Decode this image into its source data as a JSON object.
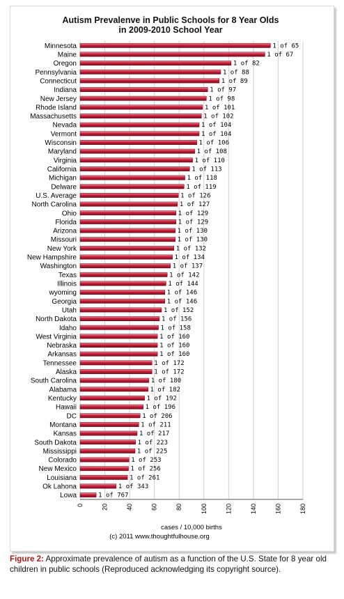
{
  "chart_data": {
    "type": "bar",
    "orientation": "horizontal",
    "title_line1": "Autism Prevalenve in Public Schools for 8 Year Olds",
    "title_line2": "in 2009-2010 School Year",
    "xlabel": "cases / 10,000 births",
    "credit": "(c) 2011 www.thoughtfulhouse.org",
    "xlim": [
      0,
      180
    ],
    "xticks": [
      0,
      20,
      40,
      60,
      80,
      100,
      120,
      140,
      160,
      180
    ],
    "grid": true,
    "bar_color": "#c0213a",
    "categories": [
      "Minnesota",
      "Maine",
      "Oregon",
      "Pennsylvania",
      "Connecticut",
      "Indiana",
      "New Jersey",
      "Rhode Island",
      "Massachusetts",
      "Nevada",
      "Vermont",
      "Wisconsin",
      "Maryland",
      "Virginia",
      "California",
      "Michigan",
      "Delware",
      "U.S. Average",
      "North Carolina",
      "Ohio",
      "Florida",
      "Arizona",
      "Missouri",
      "New York",
      "New Hampshire",
      "Washington",
      "Texas",
      "Illinois",
      "wyoming",
      "Georgia",
      "Utah",
      "North Dakota",
      "Idaho",
      "West Virginia",
      "Nebraska",
      "Arkansas",
      "Tennessee",
      "Alaska",
      "South Carolina",
      "Alabama",
      "Kentucky",
      "Hawaii",
      "DC",
      "Montana",
      "Kansas",
      "South Dakota",
      "Mississippi",
      "Colorado",
      "New Mexico",
      "Louisiana",
      "Ok Lahona",
      "Lowa"
    ],
    "values": [
      153.8,
      149.3,
      122.0,
      113.6,
      112.4,
      103.1,
      102.0,
      99.0,
      98.0,
      96.2,
      96.2,
      94.3,
      92.6,
      90.9,
      88.5,
      84.7,
      84.0,
      79.4,
      78.7,
      77.5,
      77.5,
      76.9,
      76.9,
      75.8,
      74.6,
      73.0,
      70.4,
      69.4,
      68.5,
      68.5,
      65.8,
      64.1,
      63.3,
      62.5,
      62.5,
      62.5,
      58.1,
      58.1,
      55.6,
      54.9,
      52.1,
      51.0,
      48.5,
      47.4,
      46.1,
      44.8,
      44.4,
      39.5,
      39.1,
      38.3,
      29.2,
      13.0
    ],
    "data_labels": [
      "1 of 65",
      "1 of 67",
      "1 of 82",
      "1 of 88",
      "1 of 89",
      "1 of 97",
      "1 of 98",
      "1 of 101",
      "1 of 102",
      "1 of 104",
      "1 of 104",
      "1 of 106",
      "1 of 108",
      "1 of 110",
      "1 of 113",
      "1 of 118",
      "1 of 119",
      "1 of 126",
      "1 of 127",
      "1 of 129",
      "1 of 129",
      "1 of 130",
      "1 of 130",
      "1 of 132",
      "1 of 134",
      "1 of 137",
      "1 of 142",
      "1 of 144",
      "1 of 146",
      "1 of 146",
      "1 of 152",
      "1 of 156",
      "1 of 158",
      "1 of 160",
      "1 of 160",
      "1 of 160",
      "1 of 172",
      "1 of 172",
      "1 of 180",
      "1 of 182",
      "1 of 192",
      "1 of 196",
      "1 of 206",
      "1 of 211",
      "1 of 217",
      "1 of 223",
      "1 of 225",
      "1 of 253",
      "1 of 256",
      "1 of 261",
      "1 of 343",
      "1 of 767"
    ]
  },
  "caption": {
    "label": "Figure 2:",
    "text": " Approximate prevalence of autism as a function of the U.S. State for 8 year old children in public schools (Reproduced acknowledging its copyright source)."
  }
}
